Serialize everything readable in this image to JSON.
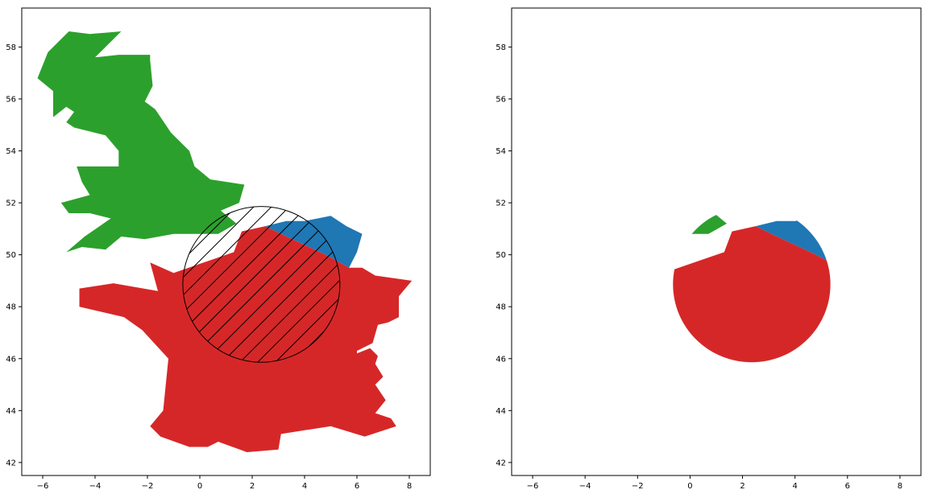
{
  "colors": {
    "background": "#ffffff",
    "axis": "#000000",
    "uk": "#2ca02c",
    "belgium": "#1f77b4",
    "france": "#d62728"
  },
  "chart_data": [
    {
      "type": "map",
      "title": "",
      "xlabel": "",
      "ylabel": "",
      "xlim": [
        -6.8,
        8.8
      ],
      "ylim": [
        41.5,
        59.5
      ],
      "xticks": [
        -6,
        -4,
        -2,
        0,
        2,
        4,
        6,
        8
      ],
      "yticks": [
        42,
        44,
        46,
        48,
        50,
        52,
        54,
        56,
        58
      ],
      "grid": false,
      "legend": "none",
      "polygons": [
        {
          "id": "uk",
          "color": "#2ca02c",
          "coords": [
            [
              -1.0,
              50.8
            ],
            [
              0.7,
              50.8
            ],
            [
              1.4,
              51.2
            ],
            [
              0.8,
              51.7
            ],
            [
              1.5,
              52.0
            ],
            [
              1.7,
              52.7
            ],
            [
              0.4,
              52.9
            ],
            [
              -0.2,
              53.4
            ],
            [
              -0.4,
              54.0
            ],
            [
              -1.1,
              54.7
            ],
            [
              -1.7,
              55.6
            ],
            [
              -2.1,
              55.9
            ],
            [
              -1.8,
              56.5
            ],
            [
              -1.9,
              57.5
            ],
            [
              -1.9,
              57.7
            ],
            [
              -3.1,
              57.7
            ],
            [
              -4.0,
              57.6
            ],
            [
              -3.0,
              58.6
            ],
            [
              -4.2,
              58.5
            ],
            [
              -5.0,
              58.6
            ],
            [
              -5.8,
              57.8
            ],
            [
              -6.2,
              56.8
            ],
            [
              -5.6,
              56.3
            ],
            [
              -5.6,
              55.3
            ],
            [
              -5.1,
              55.7
            ],
            [
              -4.8,
              55.5
            ],
            [
              -5.1,
              55.1
            ],
            [
              -4.8,
              54.9
            ],
            [
              -3.6,
              54.6
            ],
            [
              -3.1,
              54.0
            ],
            [
              -3.1,
              53.4
            ],
            [
              -4.7,
              53.4
            ],
            [
              -4.5,
              52.8
            ],
            [
              -4.2,
              52.3
            ],
            [
              -5.3,
              52.0
            ],
            [
              -5.0,
              51.6
            ],
            [
              -4.2,
              51.6
            ],
            [
              -3.4,
              51.4
            ],
            [
              -4.4,
              50.7
            ],
            [
              -5.1,
              50.1
            ],
            [
              -4.5,
              50.3
            ],
            [
              -3.6,
              50.2
            ],
            [
              -3.0,
              50.7
            ],
            [
              -2.1,
              50.6
            ],
            [
              -1.0,
              50.8
            ]
          ]
        },
        {
          "id": "belgium",
          "color": "#1f77b4",
          "coords": [
            [
              2.5,
              51.1
            ],
            [
              3.3,
              51.3
            ],
            [
              4.0,
              51.3
            ],
            [
              5.0,
              51.5
            ],
            [
              5.6,
              51.1
            ],
            [
              6.2,
              50.8
            ],
            [
              6.0,
              50.1
            ],
            [
              5.7,
              49.5
            ],
            [
              4.8,
              50.0
            ],
            [
              3.1,
              50.8
            ],
            [
              2.5,
              51.1
            ]
          ]
        },
        {
          "id": "france",
          "color": "#d62728",
          "coords": [
            [
              2.5,
              51.1
            ],
            [
              3.1,
              50.8
            ],
            [
              4.8,
              50.0
            ],
            [
              5.7,
              49.5
            ],
            [
              6.2,
              49.5
            ],
            [
              6.7,
              49.2
            ],
            [
              8.1,
              49.0
            ],
            [
              7.6,
              48.4
            ],
            [
              7.6,
              47.6
            ],
            [
              7.2,
              47.4
            ],
            [
              6.8,
              47.3
            ],
            [
              6.6,
              46.6
            ],
            [
              6.0,
              46.3
            ],
            [
              6.0,
              46.2
            ],
            [
              6.5,
              46.4
            ],
            [
              6.8,
              46.1
            ],
            [
              6.7,
              45.8
            ],
            [
              7.0,
              45.3
            ],
            [
              6.7,
              45.0
            ],
            [
              7.1,
              44.4
            ],
            [
              6.7,
              43.9
            ],
            [
              7.3,
              43.7
            ],
            [
              7.5,
              43.4
            ],
            [
              6.3,
              43.0
            ],
            [
              5.0,
              43.4
            ],
            [
              3.1,
              43.1
            ],
            [
              3.0,
              42.5
            ],
            [
              1.8,
              42.4
            ],
            [
              0.7,
              42.8
            ],
            [
              0.3,
              42.6
            ],
            [
              -0.4,
              42.6
            ],
            [
              -1.5,
              43.0
            ],
            [
              -1.9,
              43.4
            ],
            [
              -1.4,
              44.0
            ],
            [
              -1.2,
              46.0
            ],
            [
              -2.2,
              47.1
            ],
            [
              -2.9,
              47.6
            ],
            [
              -4.6,
              48.0
            ],
            [
              -4.6,
              48.7
            ],
            [
              -3.3,
              48.9
            ],
            [
              -1.6,
              48.6
            ],
            [
              -1.9,
              49.7
            ],
            [
              -1.0,
              49.3
            ],
            [
              1.3,
              50.1
            ],
            [
              1.6,
              50.9
            ],
            [
              2.5,
              51.1
            ]
          ]
        }
      ],
      "circle": {
        "center": [
          2.35,
          48.86
        ],
        "radius": 3.0,
        "fill": "none",
        "edge": "#000000",
        "hatch": "/"
      }
    },
    {
      "type": "map",
      "title": "",
      "xlabel": "",
      "ylabel": "",
      "xlim": [
        -6.8,
        8.8
      ],
      "ylim": [
        41.5,
        59.5
      ],
      "xticks": [
        -6,
        -4,
        -2,
        0,
        2,
        4,
        6,
        8
      ],
      "yticks": [
        42,
        44,
        46,
        48,
        50,
        52,
        54,
        56,
        58
      ],
      "grid": false,
      "legend": "none",
      "clip_circle": {
        "center": [
          2.35,
          48.86
        ],
        "radius": 3.0
      },
      "polygons_from": 0
    }
  ]
}
